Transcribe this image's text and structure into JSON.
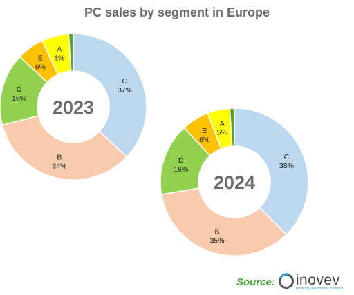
{
  "title": "PC sales by segment in Europe",
  "chart_data": [
    {
      "type": "pie",
      "year": "2023",
      "slices": [
        {
          "label": "C",
          "value": 37,
          "pct": "37%",
          "color": "#bdd7ee"
        },
        {
          "label": "B",
          "value": 34,
          "pct": "34%",
          "color": "#f8cbad"
        },
        {
          "label": "D",
          "value": 16,
          "pct": "16%",
          "color": "#92d050"
        },
        {
          "label": "E",
          "value": 6,
          "pct": "6%",
          "color": "#ffc000"
        },
        {
          "label": "A",
          "value": 6,
          "pct": "6%",
          "color": "#ffff00"
        },
        {
          "label": "",
          "value": 1,
          "pct": "",
          "color": "#5aa02c"
        }
      ]
    },
    {
      "type": "pie",
      "year": "2024",
      "slices": [
        {
          "label": "C",
          "value": 38,
          "pct": "38%",
          "color": "#bdd7ee"
        },
        {
          "label": "B",
          "value": 35,
          "pct": "35%",
          "color": "#f8cbad"
        },
        {
          "label": "D",
          "value": 16,
          "pct": "16%",
          "color": "#92d050"
        },
        {
          "label": "E",
          "value": 6,
          "pct": "6%",
          "color": "#ffc000"
        },
        {
          "label": "A",
          "value": 5,
          "pct": "5%",
          "color": "#ffff00"
        },
        {
          "label": "",
          "value": 1,
          "pct": "",
          "color": "#5aa02c"
        }
      ]
    }
  ],
  "source": {
    "label": "Source:",
    "brand": "inovev",
    "tagline": "Powering Automotive Business"
  }
}
